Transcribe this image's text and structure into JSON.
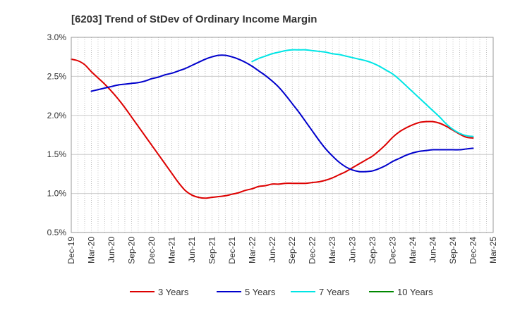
{
  "chart_data": {
    "type": "line",
    "title": "[6203]  Trend of StDev of Ordinary Income Margin",
    "xlabel": "",
    "ylabel": "",
    "x_tick_labels": [
      "Dec-19",
      "Mar-20",
      "Jun-20",
      "Sep-20",
      "Dec-20",
      "Mar-21",
      "Jun-21",
      "Sep-21",
      "Dec-21",
      "Mar-22",
      "Jun-22",
      "Sep-22",
      "Dec-22",
      "Mar-23",
      "Jun-23",
      "Sep-23",
      "Dec-23",
      "Mar-24",
      "Jun-24",
      "Sep-24",
      "Dec-24",
      "Mar-25"
    ],
    "y_tick_labels": [
      "3.0%",
      "2.5%",
      "2.0%",
      "1.5%",
      "1.0%",
      "0.5%"
    ],
    "y_ticks": [
      3.0,
      2.5,
      2.0,
      1.5,
      1.0,
      0.5
    ],
    "ylim": [
      0.5,
      3.0
    ],
    "xlim": [
      "2019-12",
      "2025-03"
    ],
    "grid": "vertical-dotted-monthly, horizontal-solid",
    "legend_position": "bottom",
    "series": [
      {
        "name": "3 Years",
        "color": "#dd0000",
        "points": [
          [
            "2019-12",
            2.72
          ],
          [
            "2020-01",
            2.7
          ],
          [
            "2020-02",
            2.65
          ],
          [
            "2020-03",
            2.56
          ],
          [
            "2020-04",
            2.48
          ],
          [
            "2020-05",
            2.4
          ],
          [
            "2020-06",
            2.31
          ],
          [
            "2020-07",
            2.21
          ],
          [
            "2020-08",
            2.1
          ],
          [
            "2020-09",
            1.98
          ],
          [
            "2020-10",
            1.86
          ],
          [
            "2020-11",
            1.74
          ],
          [
            "2020-12",
            1.62
          ],
          [
            "2021-01",
            1.5
          ],
          [
            "2021-02",
            1.38
          ],
          [
            "2021-03",
            1.26
          ],
          [
            "2021-04",
            1.14
          ],
          [
            "2021-05",
            1.04
          ],
          [
            "2021-06",
            0.98
          ],
          [
            "2021-07",
            0.95
          ],
          [
            "2021-08",
            0.94
          ],
          [
            "2021-09",
            0.95
          ],
          [
            "2021-10",
            0.96
          ],
          [
            "2021-11",
            0.97
          ],
          [
            "2021-12",
            0.99
          ],
          [
            "2022-01",
            1.01
          ],
          [
            "2022-02",
            1.04
          ],
          [
            "2022-03",
            1.06
          ],
          [
            "2022-04",
            1.09
          ],
          [
            "2022-05",
            1.1
          ],
          [
            "2022-06",
            1.12
          ],
          [
            "2022-07",
            1.12
          ],
          [
            "2022-08",
            1.13
          ],
          [
            "2022-09",
            1.13
          ],
          [
            "2022-10",
            1.13
          ],
          [
            "2022-11",
            1.13
          ],
          [
            "2022-12",
            1.14
          ],
          [
            "2023-01",
            1.15
          ],
          [
            "2023-02",
            1.17
          ],
          [
            "2023-03",
            1.2
          ],
          [
            "2023-04",
            1.24
          ],
          [
            "2023-05",
            1.28
          ],
          [
            "2023-06",
            1.33
          ],
          [
            "2023-07",
            1.38
          ],
          [
            "2023-08",
            1.43
          ],
          [
            "2023-09",
            1.48
          ],
          [
            "2023-10",
            1.55
          ],
          [
            "2023-11",
            1.63
          ],
          [
            "2023-12",
            1.72
          ],
          [
            "2024-01",
            1.79
          ],
          [
            "2024-02",
            1.84
          ],
          [
            "2024-03",
            1.88
          ],
          [
            "2024-04",
            1.91
          ],
          [
            "2024-05",
            1.92
          ],
          [
            "2024-06",
            1.92
          ],
          [
            "2024-07",
            1.9
          ],
          [
            "2024-08",
            1.86
          ],
          [
            "2024-09",
            1.81
          ],
          [
            "2024-10",
            1.76
          ],
          [
            "2024-11",
            1.72
          ],
          [
            "2024-12",
            1.71
          ]
        ]
      },
      {
        "name": "5 Years",
        "color": "#0000cc",
        "points": [
          [
            "2020-03",
            2.31
          ],
          [
            "2020-04",
            2.33
          ],
          [
            "2020-05",
            2.35
          ],
          [
            "2020-06",
            2.37
          ],
          [
            "2020-07",
            2.39
          ],
          [
            "2020-08",
            2.4
          ],
          [
            "2020-09",
            2.41
          ],
          [
            "2020-10",
            2.42
          ],
          [
            "2020-11",
            2.44
          ],
          [
            "2020-12",
            2.47
          ],
          [
            "2021-01",
            2.49
          ],
          [
            "2021-02",
            2.52
          ],
          [
            "2021-03",
            2.54
          ],
          [
            "2021-04",
            2.57
          ],
          [
            "2021-05",
            2.6
          ],
          [
            "2021-06",
            2.64
          ],
          [
            "2021-07",
            2.68
          ],
          [
            "2021-08",
            2.72
          ],
          [
            "2021-09",
            2.75
          ],
          [
            "2021-10",
            2.77
          ],
          [
            "2021-11",
            2.77
          ],
          [
            "2021-12",
            2.75
          ],
          [
            "2022-01",
            2.72
          ],
          [
            "2022-02",
            2.68
          ],
          [
            "2022-03",
            2.63
          ],
          [
            "2022-04",
            2.57
          ],
          [
            "2022-05",
            2.51
          ],
          [
            "2022-06",
            2.44
          ],
          [
            "2022-07",
            2.36
          ],
          [
            "2022-08",
            2.26
          ],
          [
            "2022-09",
            2.15
          ],
          [
            "2022-10",
            2.04
          ],
          [
            "2022-11",
            1.92
          ],
          [
            "2022-12",
            1.8
          ],
          [
            "2023-01",
            1.68
          ],
          [
            "2023-02",
            1.57
          ],
          [
            "2023-03",
            1.48
          ],
          [
            "2023-04",
            1.4
          ],
          [
            "2023-05",
            1.34
          ],
          [
            "2023-06",
            1.3
          ],
          [
            "2023-07",
            1.28
          ],
          [
            "2023-08",
            1.28
          ],
          [
            "2023-09",
            1.29
          ],
          [
            "2023-10",
            1.32
          ],
          [
            "2023-11",
            1.36
          ],
          [
            "2023-12",
            1.41
          ],
          [
            "2024-01",
            1.45
          ],
          [
            "2024-02",
            1.49
          ],
          [
            "2024-03",
            1.52
          ],
          [
            "2024-04",
            1.54
          ],
          [
            "2024-05",
            1.55
          ],
          [
            "2024-06",
            1.56
          ],
          [
            "2024-07",
            1.56
          ],
          [
            "2024-08",
            1.56
          ],
          [
            "2024-09",
            1.56
          ],
          [
            "2024-10",
            1.56
          ],
          [
            "2024-11",
            1.57
          ],
          [
            "2024-12",
            1.58
          ]
        ]
      },
      {
        "name": "7 Years",
        "color": "#00e5e5",
        "points": [
          [
            "2022-03",
            2.69
          ],
          [
            "2022-04",
            2.73
          ],
          [
            "2022-05",
            2.76
          ],
          [
            "2022-06",
            2.79
          ],
          [
            "2022-07",
            2.81
          ],
          [
            "2022-08",
            2.83
          ],
          [
            "2022-09",
            2.84
          ],
          [
            "2022-10",
            2.84
          ],
          [
            "2022-11",
            2.84
          ],
          [
            "2022-12",
            2.83
          ],
          [
            "2023-01",
            2.82
          ],
          [
            "2023-02",
            2.81
          ],
          [
            "2023-03",
            2.79
          ],
          [
            "2023-04",
            2.78
          ],
          [
            "2023-05",
            2.76
          ],
          [
            "2023-06",
            2.74
          ],
          [
            "2023-07",
            2.72
          ],
          [
            "2023-08",
            2.7
          ],
          [
            "2023-09",
            2.67
          ],
          [
            "2023-10",
            2.63
          ],
          [
            "2023-11",
            2.58
          ],
          [
            "2023-12",
            2.53
          ],
          [
            "2024-01",
            2.46
          ],
          [
            "2024-02",
            2.38
          ],
          [
            "2024-03",
            2.3
          ],
          [
            "2024-04",
            2.22
          ],
          [
            "2024-05",
            2.14
          ],
          [
            "2024-06",
            2.06
          ],
          [
            "2024-07",
            1.98
          ],
          [
            "2024-08",
            1.89
          ],
          [
            "2024-09",
            1.82
          ],
          [
            "2024-10",
            1.77
          ],
          [
            "2024-11",
            1.74
          ],
          [
            "2024-12",
            1.73
          ]
        ]
      },
      {
        "name": "10 Years",
        "color": "#008800",
        "points": []
      }
    ]
  }
}
